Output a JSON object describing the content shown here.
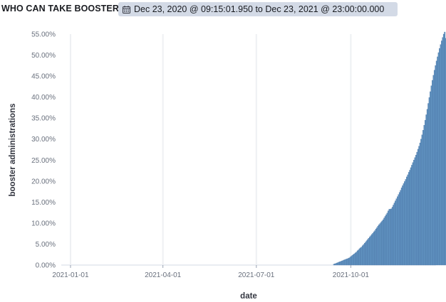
{
  "panel": {
    "title": "WHO CAN TAKE BOOSTER",
    "time_range": "Dec 23, 2020 @ 09:15:01.950 to Dec 23, 2021 @ 23:00:00.000",
    "calendar_icon": "calendar-icon"
  },
  "chart_data": {
    "type": "bar",
    "xlabel": "date",
    "ylabel": "booster administrations",
    "x_range": [
      "2020-12-23",
      "2021-12-23"
    ],
    "ylim": [
      0,
      55
    ],
    "y_ticks": [
      "0.00%",
      "5.00%",
      "10.00%",
      "15.00%",
      "20.00%",
      "25.00%",
      "30.00%",
      "35.00%",
      "40.00%",
      "45.00%",
      "50.00%",
      "55.00%"
    ],
    "y_tick_values": [
      0,
      5,
      10,
      15,
      20,
      25,
      30,
      35,
      40,
      45,
      50,
      55
    ],
    "x_ticks": [
      "2021-01-01",
      "2021-04-01",
      "2021-07-01",
      "2021-10-01"
    ],
    "grid": true,
    "bar_color": "#6092c0",
    "series": [
      {
        "x_start": "2021-09-14",
        "x_step_days": 1,
        "values": [
          0.2,
          0.3,
          0.4,
          0.5,
          0.6,
          0.7,
          0.8,
          0.9,
          1.0,
          1.1,
          1.2,
          1.3,
          1.4,
          1.5,
          1.6,
          1.7,
          1.9,
          2.1,
          2.3,
          2.5,
          2.7,
          2.9,
          3.1,
          3.4,
          3.6,
          3.9,
          4.1,
          4.3,
          4.6,
          4.9,
          5.2,
          5.5,
          5.8,
          6.1,
          6.4,
          6.7,
          7.0,
          7.3,
          7.6,
          7.9,
          8.2,
          8.6,
          8.9,
          9.3,
          9.6,
          9.9,
          10.2,
          10.5,
          10.8,
          11.2,
          11.6,
          12.0,
          12.4,
          12.9,
          13.3,
          13.3,
          13.4,
          13.8,
          14.3,
          14.8,
          15.3,
          15.8,
          16.3,
          16.8,
          17.3,
          17.8,
          18.4,
          18.9,
          19.4,
          19.9,
          20.4,
          21.0,
          21.5,
          22.1,
          22.6,
          23.2,
          23.8,
          24.4,
          25.0,
          25.6,
          26.2,
          26.9,
          27.6,
          28.3,
          29.1,
          30.0,
          31.0,
          32.1,
          33.3,
          34.5,
          35.8,
          37.1,
          38.5,
          39.9,
          41.3,
          42.7,
          44.0,
          45.2,
          46.4,
          47.5,
          48.6,
          49.6,
          50.6,
          51.6,
          52.5,
          53.4,
          54.2,
          55.0,
          55.5,
          54.0
        ]
      }
    ]
  }
}
